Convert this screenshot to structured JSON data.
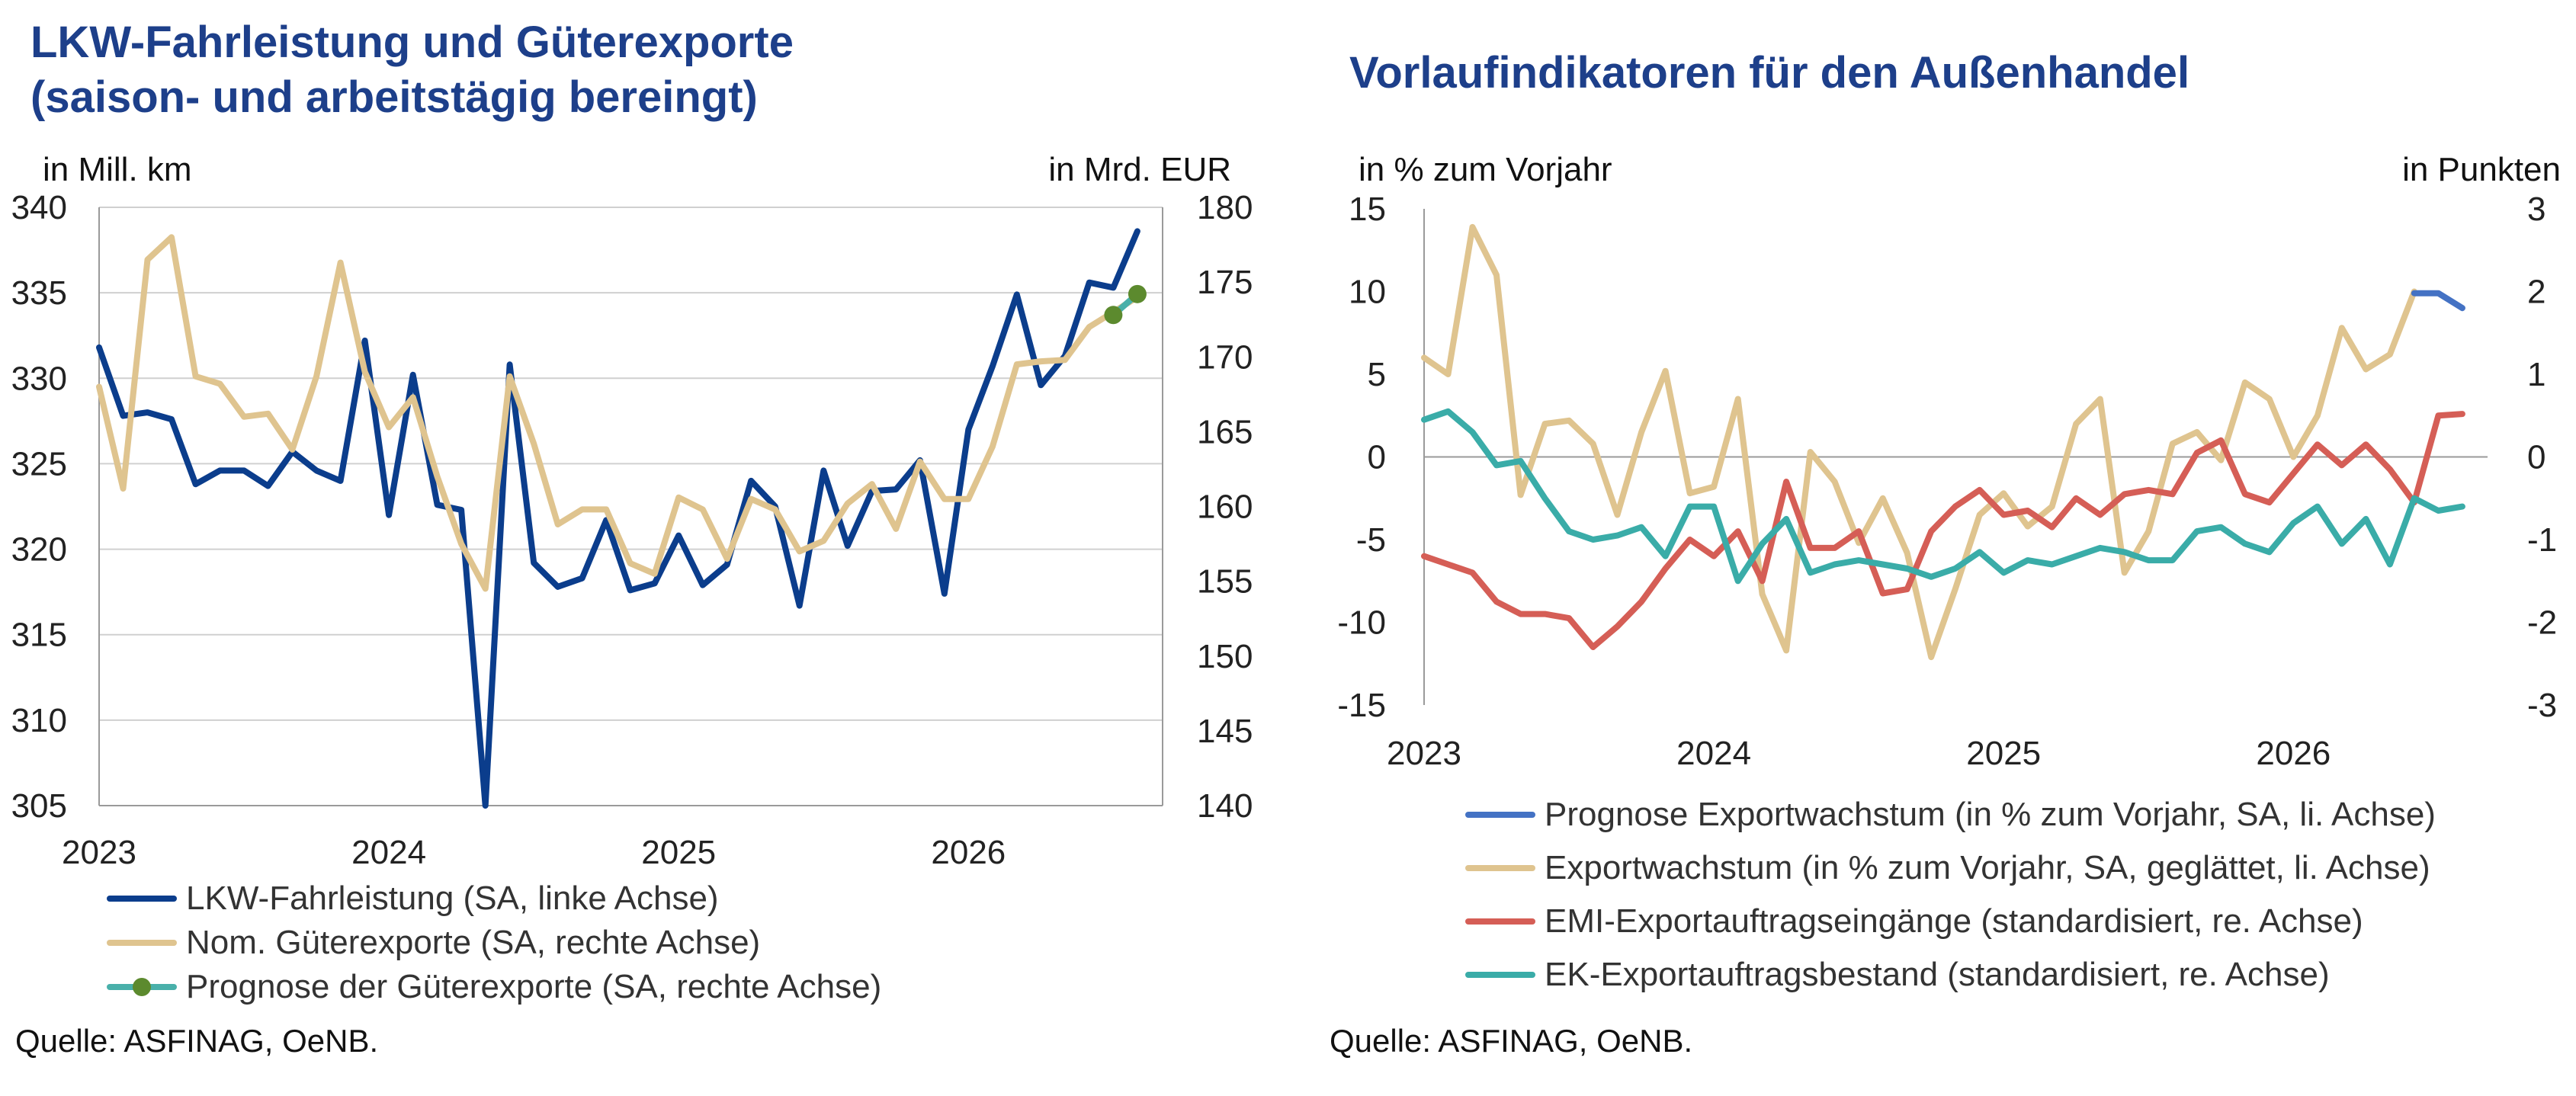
{
  "charts": [
    {
      "title_lines": [
        "LKW-Fahrleistung und Güterexporte",
        "(saison- und arbeitstägig bereingt)"
      ],
      "left_unit": "in Mill. km",
      "right_unit": "in Mrd. EUR",
      "source": "Quelle: ASFINAG, OeNB.",
      "legend": [
        {
          "label": "LKW-Fahrleistung (SA, linke Achse)",
          "color": "#0b3d8c",
          "marker": false
        },
        {
          "label": "Nom. Güterexporte (SA, rechte Achse)",
          "color": "#dfc48f",
          "marker": false
        },
        {
          "label": "Prognose der Güterexporte (SA, rechte Achse)",
          "color": "#49b0aa",
          "marker": true
        }
      ]
    },
    {
      "title_lines": [
        "Vorlaufindikatoren für den Außenhandel"
      ],
      "left_unit": "in % zum Vorjahr",
      "right_unit": "in Punkten",
      "source": "Quelle: ASFINAG, OeNB.",
      "legend": [
        {
          "label": "Prognose Exportwachstum (in % zum Vorjahr, SA, li. Achse)",
          "color": "#4472c4",
          "marker": false
        },
        {
          "label": "Exportwachstum (in % zum Vorjahr, SA, geglättet, li. Achse)",
          "color": "#dfc48f",
          "marker": false
        },
        {
          "label": "EMI-Exportauftragseingänge (standardisiert, re. Achse)",
          "color": "#d55e56",
          "marker": false
        },
        {
          "label": "EK-Exportauftragsbestand (standardisiert, re. Achse)",
          "color": "#3aaca8",
          "marker": false
        }
      ]
    }
  ],
  "chart_data": [
    {
      "type": "line",
      "x_tick_labels": [
        "2023",
        "2024",
        "2025",
        "2026"
      ],
      "x_ticks": [
        2023,
        2024,
        2025,
        2026
      ],
      "x_range": [
        2023.0,
        2026.67
      ],
      "y_left": {
        "range": [
          305,
          340
        ],
        "ticks": [
          305,
          310,
          315,
          320,
          325,
          330,
          335,
          340
        ]
      },
      "y_right": {
        "range": [
          140,
          180
        ],
        "ticks": [
          140,
          145,
          150,
          155,
          160,
          165,
          170,
          175,
          180
        ]
      },
      "grid": true,
      "legend_position": "bottom",
      "series": [
        {
          "name": "LKW-Fahrleistung (SA, linke Achse)",
          "axis": "left",
          "color": "#0b3d8c",
          "x": [
            2023.0,
            2023.083,
            2023.167,
            2023.25,
            2023.333,
            2023.417,
            2023.5,
            2023.583,
            2023.667,
            2023.75,
            2023.833,
            2023.917,
            2024.0,
            2024.083,
            2024.167,
            2024.25,
            2024.333,
            2024.417,
            2024.5,
            2024.583,
            2024.667,
            2024.75,
            2024.833,
            2024.917,
            2025.0,
            2025.083,
            2025.167,
            2025.25,
            2025.333,
            2025.417,
            2025.5,
            2025.583,
            2025.667,
            2025.75,
            2025.833,
            2025.917,
            2026.0,
            2026.083,
            2026.167,
            2026.25,
            2026.333,
            2026.417,
            2026.5,
            2026.583
          ],
          "y": [
            331.8,
            327.8,
            328.0,
            327.6,
            323.8,
            324.6,
            324.6,
            323.7,
            325.7,
            324.6,
            324.0,
            332.2,
            322.0,
            330.2,
            322.6,
            322.3,
            305.0,
            330.8,
            319.2,
            317.8,
            318.3,
            321.7,
            317.6,
            318.0,
            320.8,
            317.9,
            319.1,
            324.0,
            322.5,
            316.7,
            324.6,
            320.2,
            323.4,
            323.5,
            325.2,
            317.4,
            327.0,
            330.7,
            334.9,
            329.6,
            331.3,
            335.6,
            335.3,
            338.6
          ]
        },
        {
          "name": "Nom. Güterexporte (SA, rechte Achse)",
          "axis": "right",
          "color": "#dfc48f",
          "x": [
            2023.0,
            2023.083,
            2023.167,
            2023.25,
            2023.333,
            2023.417,
            2023.5,
            2023.583,
            2023.667,
            2023.75,
            2023.833,
            2023.917,
            2024.0,
            2024.083,
            2024.167,
            2024.25,
            2024.333,
            2024.417,
            2024.5,
            2024.583,
            2024.667,
            2024.75,
            2024.833,
            2024.917,
            2025.0,
            2025.083,
            2025.167,
            2025.25,
            2025.333,
            2025.417,
            2025.5,
            2025.583,
            2025.667,
            2025.75,
            2025.833,
            2025.917,
            2026.0,
            2026.083,
            2026.167,
            2026.25,
            2026.333,
            2026.417,
            2026.5,
            2026.583
          ],
          "y": [
            168.0,
            161.2,
            176.5,
            178.0,
            168.7,
            168.2,
            166.0,
            166.2,
            163.8,
            168.7,
            176.3,
            169.0,
            165.3,
            167.3,
            162.0,
            157.5,
            154.5,
            168.7,
            164.2,
            158.8,
            159.8,
            159.8,
            156.2,
            155.5,
            160.6,
            159.8,
            156.5,
            160.5,
            159.8,
            157.0,
            157.7,
            160.2,
            161.5,
            158.5,
            163.0,
            160.5,
            160.5,
            164.0,
            169.5,
            169.7,
            169.8,
            172.0,
            173.0,
            174.0
          ]
        },
        {
          "name": "Prognose der Güterexporte (SA, rechte Achse)",
          "axis": "right",
          "color": "#49b0aa",
          "marker_color": "#5c8a2e",
          "x": [
            2026.5,
            2026.583
          ],
          "y": [
            172.8,
            174.2
          ]
        }
      ]
    },
    {
      "type": "line",
      "x_tick_labels": [
        "2023",
        "2024",
        "2025",
        "2026"
      ],
      "x_ticks": [
        2023,
        2024,
        2025,
        2026
      ],
      "x_range": [
        2023.0,
        2026.67
      ],
      "y_left": {
        "range": [
          -15,
          15
        ],
        "ticks": [
          -15,
          -10,
          -5,
          0,
          5,
          10,
          15
        ]
      },
      "y_right": {
        "range": [
          -3,
          3
        ],
        "ticks": [
          -3,
          -2,
          -1,
          0,
          1,
          2,
          3
        ]
      },
      "grid": false,
      "legend_position": "bottom",
      "series": [
        {
          "name": "Exportwachstum (in % zum Vorjahr, SA, geglättet, li. Achse)",
          "axis": "left",
          "color": "#dfc48f",
          "x": [
            2023.0,
            2023.083,
            2023.167,
            2023.25,
            2023.333,
            2023.417,
            2023.5,
            2023.583,
            2023.667,
            2023.75,
            2023.833,
            2023.917,
            2024.0,
            2024.083,
            2024.167,
            2024.25,
            2024.333,
            2024.417,
            2024.5,
            2024.583,
            2024.667,
            2024.75,
            2024.833,
            2024.917,
            2025.0,
            2025.083,
            2025.167,
            2025.25,
            2025.333,
            2025.417,
            2025.5,
            2025.583,
            2025.667,
            2025.75,
            2025.833,
            2025.917,
            2026.0,
            2026.083,
            2026.167,
            2026.25,
            2026.333,
            2026.417
          ],
          "y": [
            6.0,
            5.0,
            13.9,
            11.0,
            -2.3,
            2.0,
            2.2,
            0.8,
            -3.5,
            1.5,
            5.2,
            -2.2,
            -1.8,
            3.5,
            -8.3,
            -11.7,
            0.3,
            -1.5,
            -5.2,
            -2.5,
            -5.8,
            -12.1,
            -8.0,
            -3.5,
            -2.2,
            -4.2,
            -3.0,
            2.0,
            3.5,
            -7.0,
            -4.5,
            0.8,
            1.5,
            -0.2,
            4.5,
            3.5,
            0.0,
            2.5,
            7.8,
            5.3,
            6.2,
            10.0
          ]
        },
        {
          "name": "Prognose Exportwachstum (in % zum Vorjahr, SA, li. Achse)",
          "axis": "left",
          "color": "#4472c4",
          "x": [
            2026.417,
            2026.5,
            2026.583
          ],
          "y": [
            9.9,
            9.9,
            9.0
          ]
        },
        {
          "name": "EMI-Exportauftragseingänge (standardisiert, re. Achse)",
          "axis": "right",
          "color": "#d55e56",
          "x": [
            2023.0,
            2023.083,
            2023.167,
            2023.25,
            2023.333,
            2023.417,
            2023.5,
            2023.583,
            2023.667,
            2023.75,
            2023.833,
            2023.917,
            2024.0,
            2024.083,
            2024.167,
            2024.25,
            2024.333,
            2024.417,
            2024.5,
            2024.583,
            2024.667,
            2024.75,
            2024.833,
            2024.917,
            2025.0,
            2025.083,
            2025.167,
            2025.25,
            2025.333,
            2025.417,
            2025.5,
            2025.583,
            2025.667,
            2025.75,
            2025.833,
            2025.917,
            2026.0,
            2026.083,
            2026.167,
            2026.25,
            2026.333,
            2026.417,
            2026.5,
            2026.583
          ],
          "y": [
            -1.2,
            -1.3,
            -1.4,
            -1.75,
            -1.9,
            -1.9,
            -1.95,
            -2.3,
            -2.05,
            -1.75,
            -1.35,
            -1.0,
            -1.2,
            -0.9,
            -1.5,
            -0.3,
            -1.1,
            -1.1,
            -0.9,
            -1.65,
            -1.6,
            -0.9,
            -0.6,
            -0.4,
            -0.7,
            -0.65,
            -0.85,
            -0.5,
            -0.7,
            -0.45,
            -0.4,
            -0.45,
            0.05,
            0.2,
            -0.45,
            -0.55,
            -0.2,
            0.15,
            -0.1,
            0.15,
            -0.15,
            -0.55,
            0.5,
            0.52
          ]
        },
        {
          "name": "EK-Exportauftragsbestand (standardisiert, re. Achse)",
          "axis": "right",
          "color": "#3aaca8",
          "x": [
            2023.0,
            2023.083,
            2023.167,
            2023.25,
            2023.333,
            2023.417,
            2023.5,
            2023.583,
            2023.667,
            2023.75,
            2023.833,
            2023.917,
            2024.0,
            2024.083,
            2024.167,
            2024.25,
            2024.333,
            2024.417,
            2024.5,
            2024.583,
            2024.667,
            2024.75,
            2024.833,
            2024.917,
            2025.0,
            2025.083,
            2025.167,
            2025.25,
            2025.333,
            2025.417,
            2025.5,
            2025.583,
            2025.667,
            2025.75,
            2025.833,
            2025.917,
            2026.0,
            2026.083,
            2026.167,
            2026.25,
            2026.333,
            2026.417,
            2026.5,
            2026.583
          ],
          "y": [
            0.45,
            0.55,
            0.3,
            -0.1,
            -0.05,
            -0.5,
            -0.9,
            -1.0,
            -0.95,
            -0.85,
            -1.2,
            -0.6,
            -0.6,
            -1.5,
            -1.05,
            -0.75,
            -1.4,
            -1.3,
            -1.25,
            -1.3,
            -1.35,
            -1.45,
            -1.35,
            -1.15,
            -1.4,
            -1.25,
            -1.3,
            -1.2,
            -1.1,
            -1.15,
            -1.25,
            -1.25,
            -0.9,
            -0.85,
            -1.05,
            -1.15,
            -0.8,
            -0.6,
            -1.05,
            -0.75,
            -1.3,
            -0.5,
            -0.65,
            -0.6
          ]
        }
      ]
    }
  ]
}
